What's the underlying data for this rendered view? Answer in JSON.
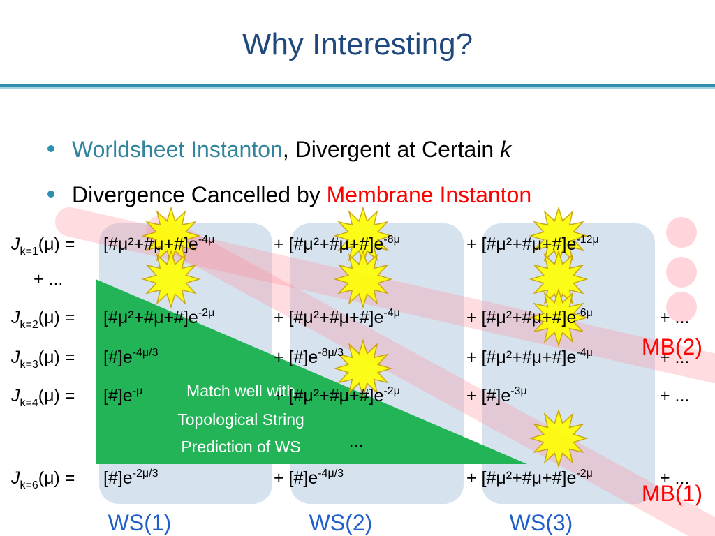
{
  "title": "Why Interesting?",
  "bullets": [
    {
      "highlight": "Worldsheet Instanton",
      "text": ", Divergent at Certain ",
      "var": "k"
    },
    {
      "text": "Divergence Cancelled by ",
      "highlight": "Membrane Instanton"
    }
  ],
  "equations": [
    {
      "lhs": {
        "sym": "J",
        "sub": "k=1",
        "arg": "(μ) = "
      },
      "terms": [
        {
          "base": "[#μ²+#μ+#]e",
          "exp": "-4μ"
        },
        {
          "base": "+ [#μ²+#μ+#]e",
          "exp": "-8μ"
        },
        {
          "base": "+ [#μ²+#μ+#]e",
          "exp": "-12μ"
        }
      ],
      "continuation": "+ ..."
    },
    {
      "lhs": {
        "sym": "J",
        "sub": "k=2",
        "arg": "(μ) = "
      },
      "terms": [
        {
          "base": "[#μ²+#μ+#]e",
          "exp": "-2μ"
        },
        {
          "base": "+ [#μ²+#μ+#]e",
          "exp": "-4μ"
        },
        {
          "base": "+ [#μ²+#μ+#]e",
          "exp": "-6μ"
        }
      ],
      "tail": "+ ..."
    },
    {
      "lhs": {
        "sym": "J",
        "sub": "k=3",
        "arg": "(μ) = "
      },
      "terms": [
        {
          "base": "[#]e",
          "exp": "-4μ/3"
        },
        {
          "base": "+ [#]e",
          "exp": "-8μ/3"
        },
        {
          "base": "+ [#μ²+#μ+#]e",
          "exp": "-4μ"
        }
      ],
      "tail": "+ ..."
    },
    {
      "lhs": {
        "sym": "J",
        "sub": "k=4",
        "arg": "(μ) = "
      },
      "terms": [
        {
          "base": "[#]e",
          "exp": "-μ"
        },
        {
          "base": "+ [#μ²+#μ+#]e",
          "exp": "-2μ"
        },
        {
          "base": "+ [#]e",
          "exp": "-3μ"
        }
      ],
      "tail": "+ ..."
    },
    {
      "lhs": {
        "sym": "J",
        "sub": "k=6",
        "arg": "(μ) = "
      },
      "terms": [
        {
          "base": "[#]e",
          "exp": "-2μ/3"
        },
        {
          "base": "+ [#]e",
          "exp": "-4μ/3"
        },
        {
          "base": "+ [#μ²+#μ+#]e",
          "exp": "-2μ"
        }
      ],
      "tail": "+ ..."
    }
  ],
  "ellipsis": "...",
  "callout": [
    "Match well with",
    "Topological String",
    "Prediction of WS"
  ],
  "column_labels": [
    "WS(1)",
    "WS(2)",
    "WS(3)"
  ],
  "band_labels": [
    "MB(2)",
    "MB(1)"
  ]
}
